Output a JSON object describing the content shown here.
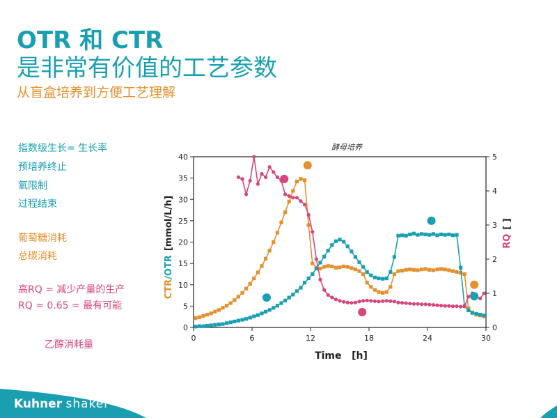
{
  "slide": {
    "title_line1": "OTR 和 CTR",
    "title_line2": "是非常有价值的工艺参数",
    "subtitle": "从盲盒培养到方便工艺理解"
  },
  "notes": [
    {
      "text": "指数级生长= 生长率",
      "color": "teal"
    },
    {
      "text": "预培养终止",
      "color": "teal"
    },
    {
      "text": "氧限制",
      "color": "teal"
    },
    {
      "text": "过程结束",
      "color": "teal"
    },
    {
      "text": "葡萄糖消耗",
      "color": "orange"
    },
    {
      "text": "总碳消耗",
      "color": "orange"
    },
    {
      "text": "高RQ = 减少产量的生产",
      "color": "pink"
    },
    {
      "text": "RQ ≈ 0.65 = 最有可能",
      "color": "pink"
    },
    {
      "text": "乙醇消耗量",
      "color": "pink"
    }
  ],
  "footer": {
    "brand_bold": "Kuhner",
    "brand_light": "shaker"
  },
  "chart_data": {
    "type": "line",
    "title": "酵母培养",
    "xlabel": "Time   [h]",
    "ylabel_left_ctr": "CTR",
    "ylabel_left_sep": "/",
    "ylabel_left_otr": "OTR",
    "ylabel_left_unit": "[mmol/L/h]",
    "ylabel_right_rq": "RQ",
    "ylabel_right_unit": "[ ]",
    "xlim": [
      0,
      30
    ],
    "ylim_left": [
      0,
      40
    ],
    "ylim_right": [
      0,
      5
    ],
    "x_ticks": [
      0,
      6,
      12,
      18,
      24,
      30
    ],
    "y_ticks_left": [
      0,
      5,
      10,
      15,
      20,
      25,
      30,
      35,
      40
    ],
    "y_ticks_right": [
      0,
      1,
      2,
      3,
      4,
      5
    ],
    "colors": {
      "ctr": "#e3902e",
      "otr": "#1a9fb0",
      "rq": "#d4467c",
      "axis": "#222222"
    },
    "series": [
      {
        "name": "CTR",
        "axis": "left",
        "x": [
          0.2,
          0.6,
          1.0,
          1.4,
          1.8,
          2.2,
          2.6,
          3.0,
          3.4,
          3.8,
          4.2,
          4.6,
          5.0,
          5.4,
          5.8,
          6.2,
          6.6,
          7.0,
          7.4,
          7.8,
          8.2,
          8.6,
          9.0,
          9.4,
          9.8,
          10.2,
          10.6,
          11.0,
          11.4,
          11.8,
          12.2,
          12.6,
          13.0,
          13.4,
          13.8,
          14.2,
          14.6,
          15.0,
          15.4,
          15.8,
          16.2,
          16.6,
          17.0,
          17.4,
          17.8,
          18.2,
          18.6,
          19.0,
          19.4,
          19.8,
          20.2,
          20.6,
          21.0,
          21.4,
          21.8,
          22.2,
          22.6,
          23.0,
          23.4,
          23.8,
          24.2,
          24.6,
          25.0,
          25.4,
          25.8,
          26.2,
          26.6,
          27.0,
          27.4,
          27.8,
          28.2,
          28.6,
          29.0,
          29.4,
          29.8
        ],
        "y": [
          2.2,
          2.4,
          2.7,
          3.0,
          3.3,
          3.7,
          4.1,
          4.6,
          5.1,
          5.7,
          6.4,
          7.2,
          8.1,
          9.1,
          10.2,
          11.5,
          12.9,
          14.4,
          16.1,
          18.0,
          20.0,
          22.2,
          24.6,
          27.0,
          29.5,
          32.0,
          34.2,
          34.8,
          34.5,
          24.0,
          15.0,
          14.0,
          13.8,
          14.2,
          14.4,
          14.3,
          14.0,
          14.1,
          14.3,
          14.2,
          13.9,
          13.6,
          13.2,
          12.5,
          10.5,
          9.5,
          8.8,
          8.3,
          8.1,
          8.3,
          9.5,
          12.5,
          13.2,
          13.3,
          13.5,
          13.6,
          13.5,
          13.4,
          13.6,
          13.7,
          13.5,
          13.4,
          13.6,
          13.7,
          13.6,
          13.4,
          13.2,
          13.0,
          12.8,
          12.5,
          4.5,
          3.5,
          3.0,
          2.8,
          2.6
        ]
      },
      {
        "name": "OTR",
        "axis": "left",
        "x": [
          0.2,
          0.6,
          1.0,
          1.4,
          1.8,
          2.2,
          2.6,
          3.0,
          3.4,
          3.8,
          4.2,
          4.6,
          5.0,
          5.4,
          5.8,
          6.2,
          6.6,
          7.0,
          7.4,
          7.8,
          8.2,
          8.6,
          9.0,
          9.4,
          9.8,
          10.2,
          10.6,
          11.0,
          11.4,
          11.8,
          12.2,
          12.6,
          13.0,
          13.4,
          13.8,
          14.2,
          14.6,
          15.0,
          15.4,
          15.8,
          16.2,
          16.6,
          17.0,
          17.4,
          17.8,
          18.2,
          18.6,
          19.0,
          19.4,
          19.8,
          20.2,
          20.6,
          21.0,
          21.4,
          21.8,
          22.2,
          22.6,
          23.0,
          23.4,
          23.8,
          24.2,
          24.6,
          25.0,
          25.4,
          25.8,
          26.2,
          26.6,
          27.0,
          27.4,
          27.8,
          28.2,
          28.6,
          29.0,
          29.4,
          29.8
        ],
        "y": [
          0.2,
          0.3,
          0.3,
          0.4,
          0.5,
          0.6,
          0.7,
          0.8,
          1.0,
          1.2,
          1.4,
          1.6,
          1.8,
          2.0,
          2.3,
          2.6,
          2.9,
          3.3,
          3.7,
          4.1,
          4.6,
          5.1,
          5.7,
          6.3,
          7.0,
          7.7,
          8.5,
          9.3,
          10.5,
          11.5,
          12.5,
          13.8,
          15.2,
          16.6,
          18.0,
          19.3,
          20.2,
          20.6,
          20.1,
          19.0,
          17.8,
          16.5,
          15.3,
          14.2,
          13.0,
          12.2,
          11.7,
          11.5,
          11.4,
          11.5,
          13.0,
          16.5,
          21.5,
          21.6,
          21.5,
          21.8,
          22.0,
          21.7,
          21.9,
          21.8,
          21.7,
          21.9,
          21.6,
          21.8,
          21.7,
          21.8,
          21.6,
          21.7,
          14.0,
          5.0,
          4.0,
          3.4,
          3.2,
          3.0,
          2.8
        ]
      },
      {
        "name": "RQ",
        "axis": "right",
        "x": [
          4.6,
          5.0,
          5.4,
          5.8,
          6.2,
          6.6,
          7.0,
          7.4,
          7.8,
          8.2,
          8.6,
          9.0,
          9.4,
          9.8,
          10.2,
          10.6,
          11.0,
          11.4,
          11.8,
          12.2,
          12.6,
          13.0,
          13.4,
          13.8,
          14.2,
          14.6,
          15.0,
          15.4,
          15.8,
          16.2,
          16.6,
          17.0,
          17.4,
          17.8,
          18.2,
          18.6,
          19.0,
          19.4,
          19.8,
          20.2,
          20.6,
          21.0,
          21.4,
          21.8,
          22.2,
          22.6,
          23.0,
          23.4,
          23.8,
          24.2,
          24.6,
          25.0,
          25.4,
          25.8,
          26.2,
          26.6,
          27.0,
          27.4,
          27.8,
          28.2,
          28.6,
          29.0,
          29.4,
          29.8
        ],
        "y": [
          4.4,
          4.35,
          3.9,
          4.3,
          5.0,
          4.2,
          4.5,
          4.4,
          4.7,
          4.55,
          4.4,
          4.3,
          3.9,
          3.85,
          3.8,
          3.8,
          3.7,
          3.6,
          3.3,
          2.8,
          2.0,
          1.4,
          1.1,
          0.95,
          0.88,
          0.82,
          0.78,
          0.75,
          0.73,
          0.72,
          0.73,
          0.76,
          0.78,
          0.79,
          0.78,
          0.77,
          0.76,
          0.77,
          0.78,
          0.77,
          0.76,
          0.73,
          0.72,
          0.71,
          0.7,
          0.69,
          0.69,
          0.68,
          0.68,
          0.67,
          0.66,
          0.65,
          0.64,
          0.63,
          0.63,
          0.62,
          0.62,
          0.61,
          0.62,
          0.9,
          1.0,
          0.9,
          0.85,
          1.0
        ]
      }
    ],
    "annotation_points": [
      {
        "x": 11.7,
        "y": 38.0,
        "axis": "left",
        "series": "CTR"
      },
      {
        "x": 28.8,
        "y": 10.0,
        "axis": "left",
        "series": "CTR"
      },
      {
        "x": 7.5,
        "y": 7.0,
        "axis": "left",
        "series": "OTR"
      },
      {
        "x": 24.4,
        "y": 25.0,
        "axis": "left",
        "series": "OTR"
      },
      {
        "x": 28.8,
        "y": 7.3,
        "axis": "left",
        "series": "OTR"
      },
      {
        "x": 9.3,
        "y": 4.35,
        "axis": "right",
        "series": "RQ"
      },
      {
        "x": 17.3,
        "y": 0.45,
        "axis": "right",
        "series": "RQ"
      }
    ]
  }
}
